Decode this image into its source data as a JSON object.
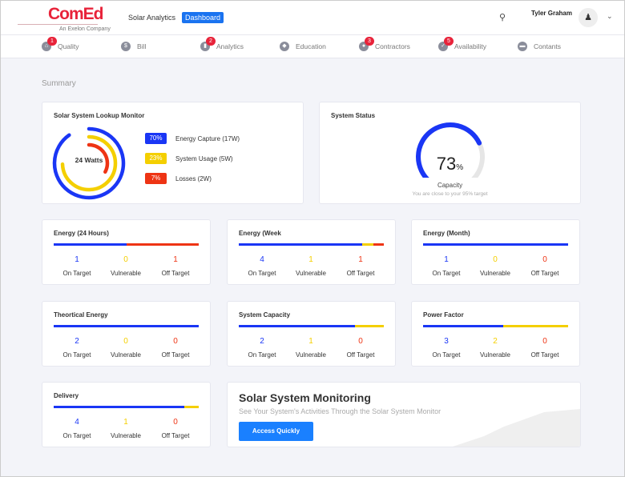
{
  "header": {
    "brand": "ComEd",
    "brand_sub": "An Exelon Company",
    "app_name": "Solar Analytics",
    "dashboard_label": "Dashboard",
    "search_icon": "search-icon",
    "user_name": "Tyler Graham",
    "avatar_icon": "user-icon",
    "menu_icon": "chevron-down-icon"
  },
  "nav": [
    {
      "label": "Quality",
      "icon": "home-icon",
      "badge": "1"
    },
    {
      "label": "Bill",
      "icon": "dollar-icon",
      "badge": ""
    },
    {
      "label": "Analytics",
      "icon": "chart-icon",
      "badge": "2"
    },
    {
      "label": "Education",
      "icon": "shield-icon",
      "badge": ""
    },
    {
      "label": "Contractors",
      "icon": "person-icon",
      "badge": "3"
    },
    {
      "label": "Availability",
      "icon": "check-icon",
      "badge": "5"
    },
    {
      "label": "Contants",
      "icon": "box-icon",
      "badge": ""
    }
  ],
  "summary_label": "Summary",
  "lookup": {
    "title": "Solar System Lookup Monitor",
    "center": "24 Watts",
    "items": [
      {
        "pct": "70%",
        "label": "Energy Capture (17W)",
        "color": "#1a36f5"
      },
      {
        "pct": "23%",
        "label": "System Usage (5W)",
        "color": "#f4cf00"
      },
      {
        "pct": "7%",
        "label": "Losses (2W)",
        "color": "#ee3414"
      }
    ]
  },
  "status": {
    "title": "System Status",
    "value": "73",
    "unit": "%",
    "value_fraction": 0.73,
    "caption": "Capacity",
    "subcaption": "You are close to your 95% target"
  },
  "colors": {
    "on": "#1a36f5",
    "vuln": "#f4cf00",
    "off": "#ee3414"
  },
  "stat_labels": {
    "on": "On Target",
    "vuln": "Vulnerable",
    "off": "Off Target"
  },
  "stats": [
    {
      "title": "Energy (24 Hours)",
      "on": "1",
      "vuln": "0",
      "off": "1",
      "bar": [
        0.5,
        0,
        0.5
      ]
    },
    {
      "title": "Energy (Week",
      "on": "4",
      "vuln": "1",
      "off": "1",
      "bar": [
        0.85,
        0.08,
        0.07
      ]
    },
    {
      "title": "Energy (Month)",
      "on": "1",
      "vuln": "0",
      "off": "0",
      "bar": [
        1,
        0,
        0
      ]
    },
    {
      "title": "Theortical Energy",
      "on": "2",
      "vuln": "0",
      "off": "0",
      "bar": [
        1,
        0,
        0
      ]
    },
    {
      "title": "System Capacity",
      "on": "2",
      "vuln": "1",
      "off": "0",
      "bar": [
        0.8,
        0.2,
        0
      ]
    },
    {
      "title": "Power Factor",
      "on": "3",
      "vuln": "2",
      "off": "0",
      "bar": [
        0.55,
        0.45,
        0
      ]
    },
    {
      "title": "Delivery",
      "on": "4",
      "vuln": "1",
      "off": "0",
      "bar": [
        0.9,
        0.1,
        0
      ]
    }
  ],
  "monitor": {
    "title": "Solar System Monitoring",
    "subtitle": "See Your System's Activities Through the Solar System Monitor",
    "button": "Access Quickly"
  }
}
